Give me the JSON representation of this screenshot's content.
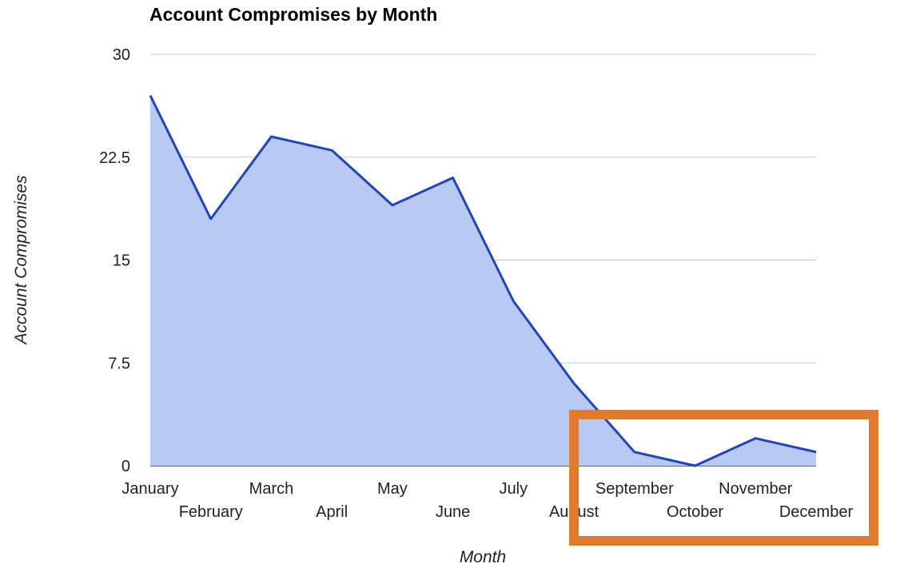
{
  "chart_data": {
    "type": "area",
    "title": "Account Compromises by Month",
    "xlabel": "Month",
    "ylabel": "Account Compromises",
    "categories": [
      "January",
      "February",
      "March",
      "April",
      "May",
      "June",
      "July",
      "August",
      "September",
      "October",
      "November",
      "December"
    ],
    "series": [
      {
        "values": [
          27,
          18,
          24,
          23,
          19,
          21,
          12,
          6,
          1,
          0,
          2,
          1
        ]
      }
    ],
    "ylim": [
      0,
      30
    ],
    "yticks": [
      "0",
      "7.5",
      "15",
      "22.5",
      "30"
    ],
    "grid": true,
    "legend": "none",
    "colors": {
      "line": "#2344b8",
      "fill": "#b8c9f3",
      "grid": "#c8c8c8",
      "baseline": "#333333",
      "highlight": "#e07b2e"
    },
    "annotation": {
      "type": "highlight-box",
      "from_category": "August",
      "to_category": "December"
    }
  }
}
